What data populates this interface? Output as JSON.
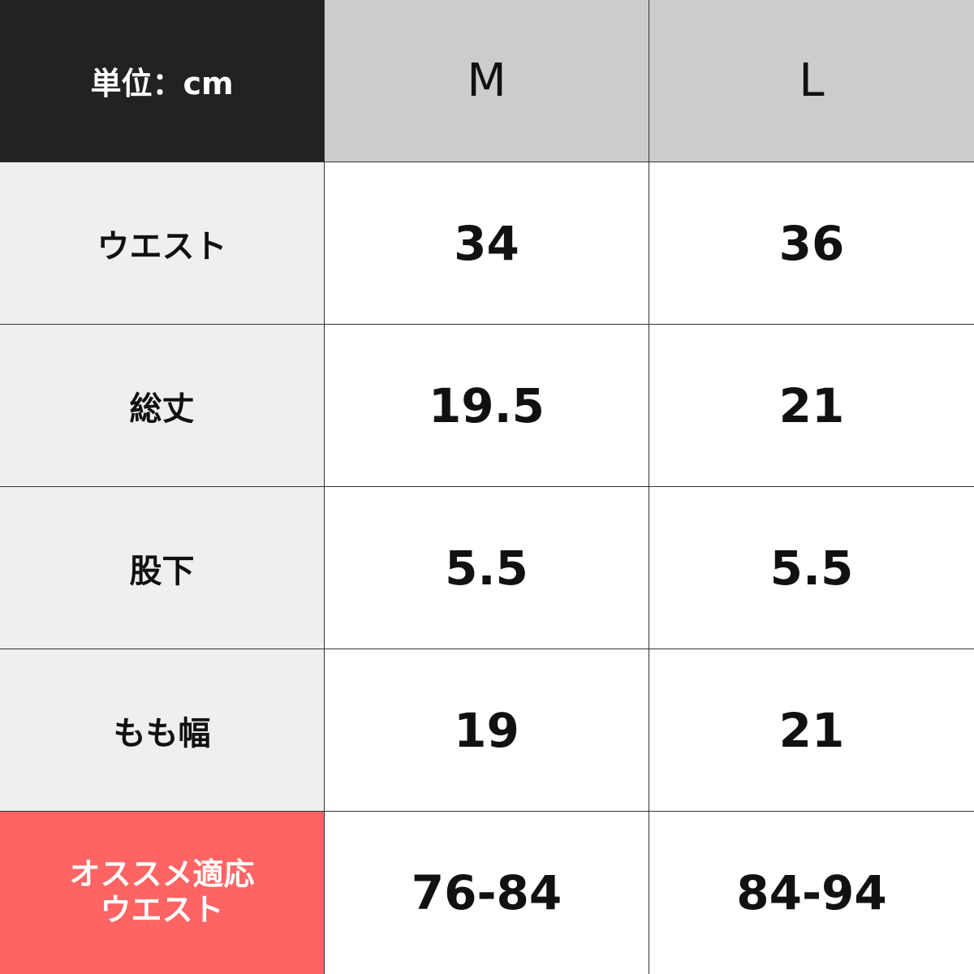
{
  "header": {
    "unit": "単位：cm",
    "sizes": [
      "M",
      "L"
    ]
  },
  "rows": [
    {
      "label": "ウエスト",
      "values": [
        "34",
        "36"
      ]
    },
    {
      "label": "総丈",
      "values": [
        "19.5",
        "21"
      ]
    },
    {
      "label": "股下",
      "values": [
        "5.5",
        "5.5"
      ]
    },
    {
      "label": "もも幅",
      "values": [
        "19",
        "21"
      ]
    },
    {
      "label": "オススメ適応\nウエスト",
      "values": [
        "76-84",
        "84-94"
      ],
      "highlight": true
    }
  ],
  "colors": {
    "header_dark": "#222222",
    "header_size": "#cccccc",
    "label_bg": "#efefef",
    "accent": "#ff6464"
  }
}
